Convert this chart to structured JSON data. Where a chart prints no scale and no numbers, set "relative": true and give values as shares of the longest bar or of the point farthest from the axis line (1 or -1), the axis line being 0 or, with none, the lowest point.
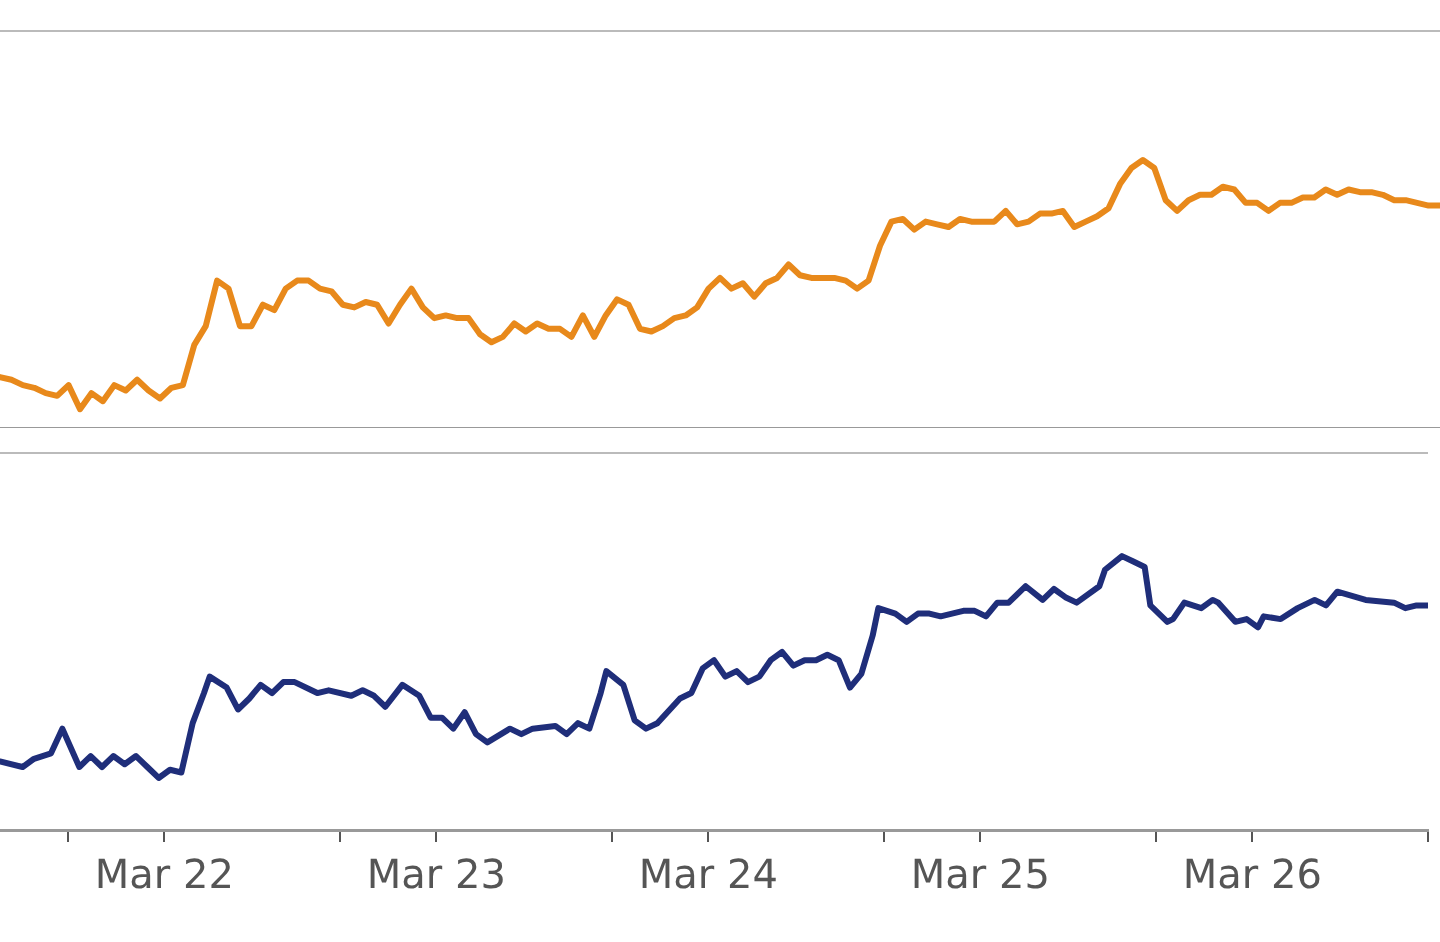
{
  "chart_data": [
    {
      "type": "line",
      "relative": true,
      "marker": "none",
      "tick_labels": false,
      "categories": [
        null,
        null,
        null,
        null,
        null,
        null,
        null,
        null,
        null,
        null,
        null,
        null,
        null,
        null,
        null,
        null,
        null,
        null,
        null,
        null,
        null,
        null,
        null,
        null,
        null,
        null,
        null,
        null,
        null,
        null,
        null,
        null,
        null,
        null,
        null,
        null,
        null,
        null,
        null,
        null,
        null,
        null,
        null,
        null,
        null,
        null,
        null,
        null,
        null,
        null,
        null,
        null,
        null,
        null,
        null,
        null,
        null,
        null,
        null,
        null,
        null,
        null,
        null,
        null,
        null,
        null,
        null,
        null,
        null,
        null,
        null,
        null,
        null,
        null,
        null,
        null,
        null,
        null,
        null,
        null,
        null,
        null,
        null,
        null,
        null,
        null,
        null,
        null,
        null,
        null,
        null,
        null,
        null,
        null,
        null,
        null,
        null,
        null,
        null,
        null,
        null,
        null,
        null,
        null,
        null,
        null,
        null,
        null,
        null,
        null,
        null,
        null,
        null,
        null,
        null,
        null,
        null,
        null,
        null,
        null,
        null,
        null,
        null,
        null,
        null,
        null,
        null
      ],
      "series": [
        {
          "color": "#e8891b",
          "values": [
            0.19,
            0.18,
            0.16,
            0.15,
            0.13,
            0.12,
            0.16,
            0.07,
            0.13,
            0.1,
            0.16,
            0.14,
            0.18,
            0.14,
            0.11,
            0.15,
            0.16,
            0.31,
            0.38,
            0.55,
            0.52,
            0.38,
            0.38,
            0.46,
            0.44,
            0.52,
            0.55,
            0.55,
            0.52,
            0.51,
            0.46,
            0.45,
            0.47,
            0.46,
            0.39,
            0.46,
            0.52,
            0.45,
            0.41,
            0.42,
            0.41,
            0.41,
            0.35,
            0.32,
            0.34,
            0.39,
            0.36,
            0.39,
            0.37,
            0.37,
            0.34,
            0.42,
            0.34,
            0.42,
            0.48,
            0.46,
            0.37,
            0.36,
            0.38,
            0.41,
            0.42,
            0.45,
            0.52,
            0.56,
            0.52,
            0.54,
            0.49,
            0.54,
            0.56,
            0.61,
            0.57,
            0.56,
            0.56,
            0.56,
            0.55,
            0.52,
            0.55,
            0.68,
            0.77,
            0.78,
            0.74,
            0.77,
            0.76,
            0.75,
            0.78,
            0.77,
            0.77,
            0.77,
            0.81,
            0.76,
            0.77,
            0.8,
            0.8,
            0.81,
            0.75,
            0.77,
            0.79,
            0.82,
            0.91,
            0.97,
            1,
            0.97,
            0.85,
            0.81,
            0.85,
            0.87,
            0.87,
            0.9,
            0.89,
            0.84,
            0.84,
            0.81,
            0.84,
            0.84,
            0.86,
            0.86,
            0.89,
            0.87,
            0.89,
            0.88,
            0.88,
            0.87,
            0.85,
            0.85,
            0.84,
            0.83,
            0.83
          ]
        }
      ]
    },
    {
      "type": "line",
      "relative": true,
      "marker": "none",
      "tick_labels": "x",
      "xlim": [
        "--03-21T09:30",
        "--03-26T15:30"
      ],
      "xticks": [
        {
          "value": "--03-21T15:30",
          "label": null
        },
        {
          "value": "--03-22",
          "label": "Mar 22"
        },
        {
          "value": "--03-22T15:30",
          "label": null
        },
        {
          "value": "--03-23",
          "label": "Mar 23"
        },
        {
          "value": "--03-23T15:30",
          "label": null
        },
        {
          "value": "--03-24",
          "label": "Mar 24"
        },
        {
          "value": "--03-24T15:30",
          "label": null
        },
        {
          "value": "--03-25",
          "label": "Mar 25"
        },
        {
          "value": "--03-25T15:30",
          "label": null
        },
        {
          "value": "--03-26",
          "label": "Mar 26"
        },
        {
          "value": "--03-26T15:30",
          "label": null
        }
      ],
      "x": [
        "--03-21T09:30",
        "--03-21T11:30",
        "--03-21T12:30",
        "--03-21T14:00",
        "--03-21T15:00",
        "--03-21T16:30",
        "--03-21T17:30",
        "--03-21T18:30",
        "--03-21T19:30",
        "--03-21T20:30",
        "--03-21T21:30",
        "--03-21T22:30",
        "--03-21T23:30",
        "--03-22T00:30",
        "--03-22T01:30",
        "--03-22T02:30",
        "--03-22T03:30",
        "--03-22T04:00",
        "--03-22T05:30",
        "--03-22T06:30",
        "--03-22T07:30",
        "--03-22T08:30",
        "--03-22T09:30",
        "--03-22T10:30",
        "--03-22T11:30",
        "--03-22T13:30",
        "--03-22T14:30",
        "--03-22T16:30",
        "--03-22T17:30",
        "--03-22T18:30",
        "--03-22T19:30",
        "--03-22T21:00",
        "--03-22T22:30",
        "--03-22T23:30",
        "--03-23T00:30",
        "--03-23T01:30",
        "--03-23T02:30",
        "--03-23T03:30",
        "--03-23T04:30",
        "--03-23T06:30",
        "--03-23T07:30",
        "--03-23T08:30",
        "--03-23T10:30",
        "--03-23T11:30",
        "--03-23T12:30",
        "--03-23T13:30",
        "--03-23T14:30",
        "--03-23T15:00",
        "--03-23T16:30",
        "--03-23T17:30",
        "--03-23T18:30",
        "--03-23T19:30",
        "--03-23T21:30",
        "--03-23T22:30",
        "--03-23T23:30",
        "--03-24T00:30",
        "--03-24T01:30",
        "--03-24T02:30",
        "--03-24T03:30",
        "--03-24T04:30",
        "--03-24T05:30",
        "--03-24T06:30",
        "--03-24T07:30",
        "--03-24T08:30",
        "--03-24T09:30",
        "--03-24T10:30",
        "--03-24T11:30",
        "--03-24T12:30",
        "--03-24T13:30",
        "--03-24T14:30",
        "--03-24T15:00",
        "--03-24T16:30",
        "--03-24T17:30",
        "--03-24T18:30",
        "--03-24T19:30",
        "--03-24T20:30",
        "--03-24T22:30",
        "--03-24T23:30",
        "--03-25T00:30",
        "--03-25T01:30",
        "--03-25T02:30",
        "--03-25T03:30",
        "--03-25T04:00",
        "--03-25T05:30",
        "--03-25T06:30",
        "--03-25T07:30",
        "--03-25T08:30",
        "--03-25T10:30",
        "--03-25T11:00",
        "--03-25T12:30",
        "--03-25T13:30",
        "--03-25T14:30",
        "--03-25T15:00",
        "--03-25T16:30",
        "--03-25T17:00",
        "--03-25T18:00",
        "--03-25T19:30",
        "--03-25T20:30",
        "--03-25T21:00",
        "--03-25T22:30",
        "--03-25T23:30",
        "--03-26T00:30",
        "--03-26T01:00",
        "--03-26T02:30",
        "--03-26T04:00",
        "--03-26T05:30",
        "--03-26T06:30",
        "--03-26T07:30",
        "--03-26T10:00",
        "--03-26T12:30",
        "--03-26T13:30",
        "--03-26T14:30",
        "--03-26T15:30"
      ],
      "series": [
        {
          "color": "#1f2e7a",
          "values": [
            0.25,
            0.23,
            0.26,
            0.28,
            0.37,
            0.23,
            0.27,
            0.23,
            0.27,
            0.24,
            0.27,
            0.23,
            0.19,
            0.22,
            0.21,
            0.39,
            0.5,
            0.56,
            0.52,
            0.44,
            0.48,
            0.53,
            0.5,
            0.54,
            0.54,
            0.5,
            0.51,
            0.49,
            0.51,
            0.49,
            0.45,
            0.53,
            0.49,
            0.41,
            0.41,
            0.37,
            0.43,
            0.35,
            0.32,
            0.37,
            0.35,
            0.37,
            0.38,
            0.35,
            0.39,
            0.37,
            0.5,
            0.58,
            0.53,
            0.4,
            0.37,
            0.39,
            0.48,
            0.5,
            0.59,
            0.62,
            0.56,
            0.58,
            0.54,
            0.56,
            0.62,
            0.65,
            0.6,
            0.62,
            0.62,
            0.64,
            0.62,
            0.52,
            0.57,
            0.71,
            0.81,
            0.79,
            0.76,
            0.79,
            0.79,
            0.78,
            0.8,
            0.8,
            0.78,
            0.83,
            0.83,
            0.87,
            0.89,
            0.84,
            0.88,
            0.85,
            0.83,
            0.89,
            0.95,
            1,
            0.98,
            0.96,
            0.82,
            0.76,
            0.77,
            0.83,
            0.81,
            0.84,
            0.83,
            0.76,
            0.77,
            0.74,
            0.78,
            0.77,
            0.81,
            0.84,
            0.82,
            0.87,
            0.84,
            0.83,
            0.81,
            0.82,
            0.82
          ]
        }
      ]
    }
  ]
}
